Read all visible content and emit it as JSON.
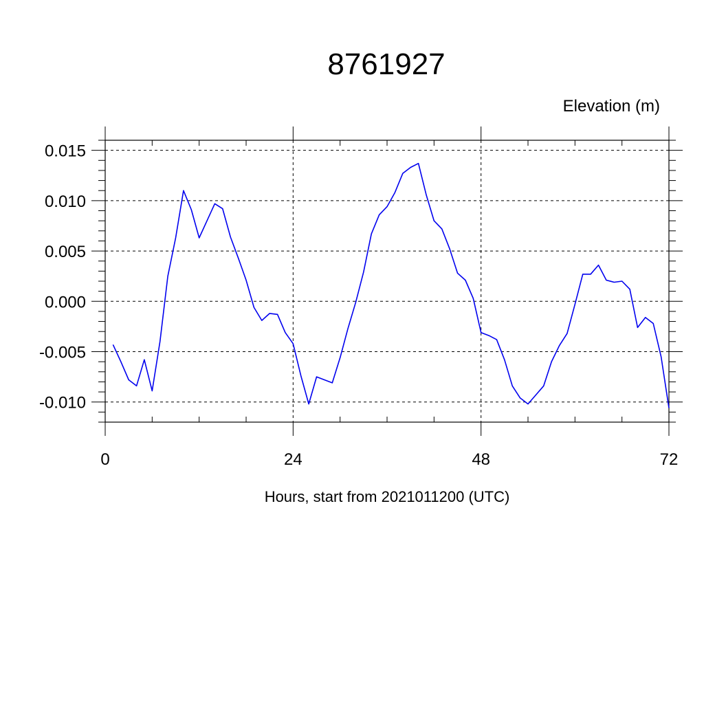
{
  "chart_data": {
    "type": "line",
    "title": "8761927",
    "ylabel": "Elevation (m)",
    "xlabel": "Hours, start from 2021011200 (UTC)",
    "xlim": [
      0,
      72
    ],
    "ylim": [
      -0.012,
      0.016
    ],
    "x_ticks": [
      0,
      24,
      48,
      72
    ],
    "x_tick_labels": [
      "0",
      "24",
      "48",
      "72"
    ],
    "y_ticks": [
      -0.01,
      -0.005,
      0.0,
      0.005,
      0.01,
      0.015
    ],
    "y_tick_labels": [
      "-0.010",
      "-0.005",
      "0.000",
      "0.005",
      "0.010",
      "0.015"
    ],
    "grid": true,
    "line_color": "#0000ee",
    "series": [
      {
        "x": [
          1,
          2,
          3,
          4,
          5,
          6,
          7,
          8,
          9,
          10,
          11,
          12,
          13,
          14,
          15,
          16,
          17,
          18,
          19,
          20,
          21,
          22,
          23,
          24,
          25,
          26,
          27,
          28,
          29,
          30,
          31,
          32,
          33,
          34,
          35,
          36,
          37,
          38,
          39,
          40,
          41,
          42,
          43,
          44,
          45,
          46,
          47,
          48,
          49,
          50,
          51,
          52,
          53,
          54,
          55,
          56,
          57,
          58,
          59,
          60,
          61,
          62,
          63,
          64,
          65,
          66,
          67,
          68,
          69,
          70,
          71,
          72
        ],
        "values": [
          -0.0043,
          -0.006,
          -0.0078,
          -0.0084,
          -0.0058,
          -0.0089,
          -0.004,
          0.0025,
          0.0063,
          0.011,
          0.0091,
          0.0063,
          0.008,
          0.0097,
          0.0092,
          0.0064,
          0.0043,
          0.0021,
          -0.0006,
          -0.0019,
          -0.0012,
          -0.0013,
          -0.0031,
          -0.0042,
          -0.0074,
          -0.0102,
          -0.0075,
          -0.0078,
          -0.0081,
          -0.0056,
          -0.0027,
          -0.0001,
          0.0029,
          0.0067,
          0.0086,
          0.0094,
          0.0108,
          0.0127,
          0.0133,
          0.0137,
          0.0106,
          0.008,
          0.0072,
          0.0052,
          0.0028,
          0.0021,
          0.0003,
          -0.0031,
          -0.0034,
          -0.0038,
          -0.0058,
          -0.0084,
          -0.0096,
          -0.0102,
          -0.0093,
          -0.0084,
          -0.006,
          -0.0044,
          -0.0032,
          -0.0003,
          0.0027,
          0.0027,
          0.0036,
          0.0021,
          0.0019,
          0.002,
          0.0012,
          -0.0026,
          -0.0016,
          -0.0022,
          -0.0055,
          -0.0106
        ]
      }
    ]
  }
}
